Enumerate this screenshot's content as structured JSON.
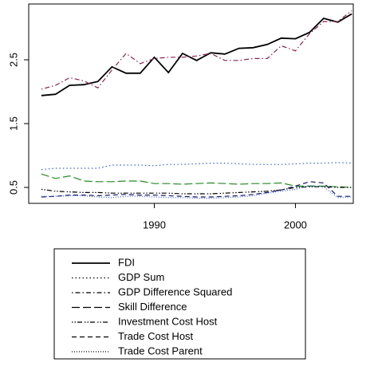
{
  "chart_data": {
    "type": "line",
    "x": [
      1982,
      1983,
      1984,
      1985,
      1986,
      1987,
      1988,
      1989,
      1990,
      1991,
      1992,
      1993,
      1994,
      1995,
      1996,
      1997,
      1998,
      1999,
      2000,
      2001,
      2002,
      2003,
      2004
    ],
    "xlim": [
      1981.1,
      2004.1
    ],
    "xticks": [
      1990,
      2000
    ],
    "ylim": [
      0.25,
      3.375
    ],
    "yticks": [
      0.5,
      1.5,
      2.5
    ],
    "legend": "bottom",
    "series": [
      {
        "name": "FDI",
        "color": "#000000",
        "linestyle": "solid",
        "values": [
          1.94,
          1.96,
          2.1,
          2.11,
          2.16,
          2.39,
          2.29,
          2.29,
          2.54,
          2.3,
          2.6,
          2.49,
          2.61,
          2.59,
          2.68,
          2.69,
          2.74,
          2.84,
          2.83,
          2.93,
          3.15,
          3.09,
          3.22
        ]
      },
      {
        "name": "GDP Sum",
        "color": "#3a5fcd",
        "linestyle": "dotted",
        "values": [
          0.78,
          0.8,
          0.8,
          0.8,
          0.8,
          0.85,
          0.85,
          0.85,
          0.84,
          0.86,
          0.86,
          0.87,
          0.88,
          0.88,
          0.87,
          0.86,
          0.86,
          0.86,
          0.87,
          0.88,
          0.88,
          0.89,
          0.88
        ]
      },
      {
        "name": "GDP Difference Squared",
        "color": "#8b2252",
        "linestyle": "dotdash",
        "values": [
          2.04,
          2.1,
          2.22,
          2.17,
          2.06,
          2.34,
          2.6,
          2.44,
          2.52,
          2.54,
          2.54,
          2.56,
          2.6,
          2.49,
          2.49,
          2.52,
          2.52,
          2.72,
          2.64,
          2.91,
          3.1,
          3.1,
          3.27
        ]
      },
      {
        "name": "Skill Difference",
        "color": "#228b22",
        "linestyle": "longdash",
        "values": [
          0.71,
          0.64,
          0.68,
          0.6,
          0.59,
          0.59,
          0.6,
          0.6,
          0.56,
          0.56,
          0.55,
          0.56,
          0.57,
          0.56,
          0.55,
          0.56,
          0.56,
          0.57,
          0.52,
          0.52,
          0.52,
          0.51,
          0.5
        ]
      },
      {
        "name": "Investment Cost Host",
        "color": "#000000",
        "linestyle": "twodash",
        "values": [
          0.47,
          0.44,
          0.43,
          0.42,
          0.42,
          0.41,
          0.41,
          0.41,
          0.41,
          0.41,
          0.4,
          0.4,
          0.4,
          0.41,
          0.42,
          0.43,
          0.44,
          0.46,
          0.5,
          0.51,
          0.51,
          0.5,
          0.5
        ]
      },
      {
        "name": "Trade Cost Host",
        "color": "#191970",
        "linestyle": "dashed",
        "values": [
          0.35,
          0.36,
          0.38,
          0.38,
          0.37,
          0.38,
          0.39,
          0.38,
          0.38,
          0.37,
          0.36,
          0.35,
          0.35,
          0.36,
          0.37,
          0.39,
          0.42,
          0.46,
          0.52,
          0.59,
          0.57,
          0.36,
          0.36
        ]
      },
      {
        "name": "Trade Cost Parent",
        "color": "#3a5fcd",
        "linestyle": "finedotted",
        "values": [
          0.36,
          0.36,
          0.37,
          0.37,
          0.35,
          0.34,
          0.36,
          0.36,
          0.35,
          0.34,
          0.34,
          0.33,
          0.33,
          0.34,
          0.35,
          0.37,
          0.41,
          0.44,
          0.47,
          0.53,
          0.51,
          0.34,
          0.35
        ]
      }
    ]
  }
}
